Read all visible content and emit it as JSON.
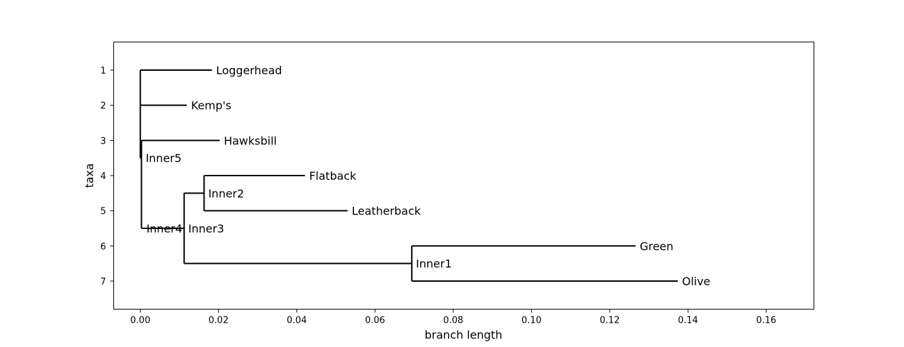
{
  "chart_data": {
    "type": "dendrogram",
    "xlabel": "branch length",
    "ylabel": "taxa",
    "xlim": [
      -0.0068,
      0.1722
    ],
    "ylim": [
      7.8,
      0.2
    ],
    "x_ticks": [
      0.0,
      0.02,
      0.04,
      0.06,
      0.08,
      0.1,
      0.12,
      0.14,
      0.16
    ],
    "x_tick_labels": [
      "0.00",
      "0.02",
      "0.04",
      "0.06",
      "0.08",
      "0.10",
      "0.12",
      "0.14",
      "0.16"
    ],
    "y_ticks": [
      1,
      2,
      3,
      4,
      5,
      6,
      7
    ],
    "y_tick_labels": [
      "1",
      "2",
      "3",
      "4",
      "5",
      "6",
      "7"
    ],
    "nodes": [
      {
        "name": "",
        "x": 0.0,
        "y": 3.25,
        "children": [
          "Loggerhead",
          "Kemp's",
          "Inner5"
        ]
      },
      {
        "name": "Inner5",
        "x": 0.0003,
        "y": 3.5,
        "children": [
          "Hawksbill",
          "Inner4"
        ]
      },
      {
        "name": "Inner4",
        "x": 0.0005,
        "y": 5.5,
        "children": [
          "Inner3"
        ]
      },
      {
        "name": "Inner3",
        "x": 0.0112,
        "y": 5.5,
        "children": [
          "Inner2",
          "Inner1"
        ]
      },
      {
        "name": "Inner2",
        "x": 0.0163,
        "y": 4.5,
        "children": [
          "Flatback",
          "Leatherback"
        ]
      },
      {
        "name": "Inner1",
        "x": 0.0694,
        "y": 6.5,
        "children": [
          "Green",
          "Olive"
        ]
      },
      {
        "name": "Loggerhead",
        "x": 0.0183,
        "y": 1,
        "children": []
      },
      {
        "name": "Kemp's",
        "x": 0.0119,
        "y": 2,
        "children": []
      },
      {
        "name": "Hawksbill",
        "x": 0.0203,
        "y": 3,
        "children": []
      },
      {
        "name": "Flatback",
        "x": 0.0421,
        "y": 4,
        "children": []
      },
      {
        "name": "Leatherback",
        "x": 0.053,
        "y": 5,
        "children": []
      },
      {
        "name": "Green",
        "x": 0.1266,
        "y": 6,
        "children": []
      },
      {
        "name": "Olive",
        "x": 0.1374,
        "y": 7,
        "children": []
      }
    ]
  }
}
